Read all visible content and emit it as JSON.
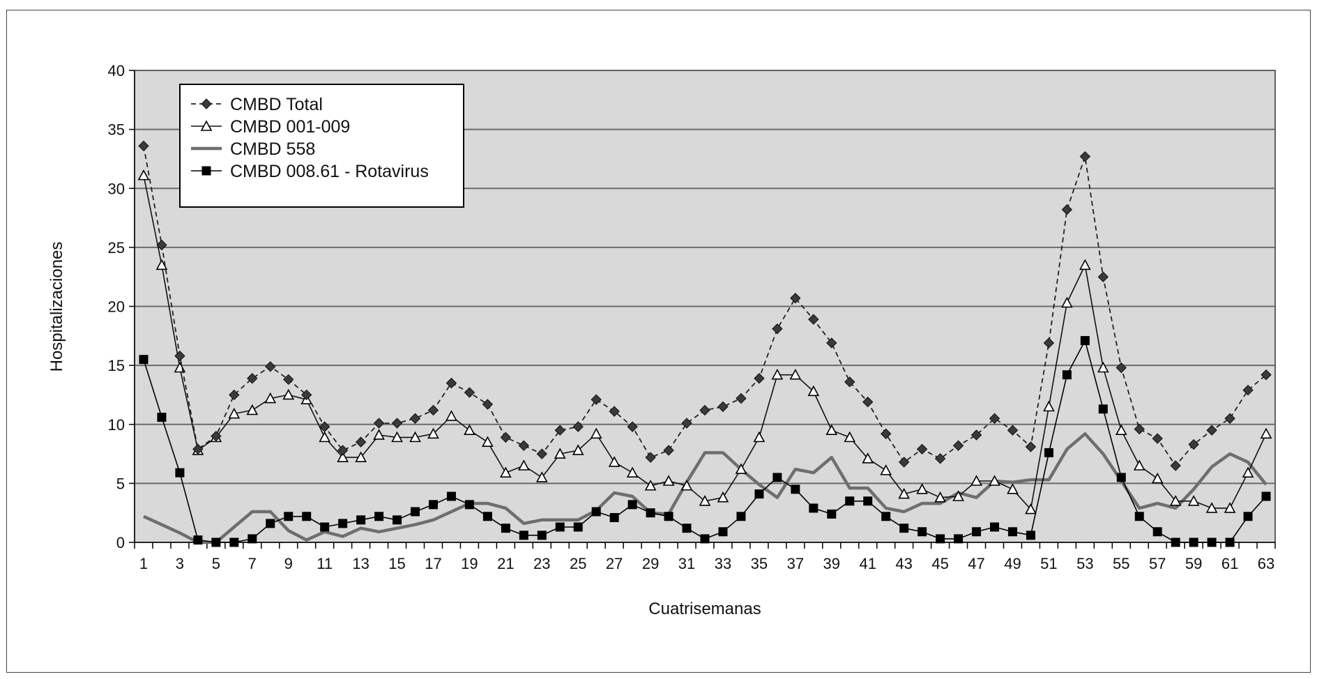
{
  "chart_data": {
    "type": "line",
    "xlabel": "Cuatrisemanas",
    "ylabel": "Hospitalizaciones",
    "ylim": [
      0,
      40
    ],
    "yticks": [
      0,
      5,
      10,
      15,
      20,
      25,
      30,
      35,
      40
    ],
    "xlim": [
      1,
      63
    ],
    "xticks": [
      1,
      3,
      5,
      7,
      9,
      11,
      13,
      15,
      17,
      19,
      21,
      23,
      25,
      27,
      29,
      31,
      33,
      35,
      37,
      39,
      41,
      43,
      45,
      47,
      49,
      51,
      53,
      55,
      57,
      59,
      61,
      63
    ],
    "grid": "horizontal",
    "legend_position": "top-left",
    "plot_background": "#d9d9d9",
    "series": [
      {
        "name": "CMBD Total",
        "style": "dashed",
        "marker": "diamond",
        "color": "#222222",
        "values": [
          33.6,
          25.2,
          15.8,
          7.9,
          9.0,
          12.5,
          13.9,
          14.9,
          13.8,
          12.5,
          9.8,
          7.8,
          8.5,
          10.1,
          10.1,
          10.5,
          11.2,
          13.5,
          12.7,
          11.7,
          8.9,
          8.2,
          7.5,
          9.5,
          9.8,
          12.1,
          11.1,
          9.8,
          7.2,
          7.8,
          10.1,
          11.2,
          11.5,
          12.2,
          13.9,
          18.1,
          20.7,
          18.9,
          16.9,
          13.6,
          11.9,
          9.2,
          6.8,
          7.9,
          7.1,
          8.2,
          9.1,
          10.5,
          9.5,
          8.1,
          16.9,
          28.2,
          32.7,
          22.5,
          14.8,
          9.6,
          8.8,
          6.5,
          8.3,
          9.5,
          10.5,
          12.9,
          14.2
        ]
      },
      {
        "name": "CMBD 001-009",
        "style": "solid",
        "marker": "triangle-open",
        "color": "#111111",
        "values": [
          31.1,
          23.5,
          14.8,
          7.8,
          8.9,
          10.9,
          11.2,
          12.2,
          12.5,
          12.1,
          8.9,
          7.2,
          7.2,
          9.1,
          8.9,
          8.9,
          9.2,
          10.7,
          9.5,
          8.5,
          5.9,
          6.5,
          5.5,
          7.5,
          7.8,
          9.2,
          6.8,
          5.9,
          4.8,
          5.2,
          4.8,
          3.5,
          3.8,
          6.2,
          8.9,
          14.2,
          14.2,
          12.8,
          9.5,
          8.9,
          7.1,
          6.1,
          4.1,
          4.5,
          3.8,
          3.9,
          5.2,
          5.2,
          4.5,
          2.8,
          11.5,
          20.3,
          23.5,
          14.8,
          9.5,
          6.5,
          5.4,
          3.5,
          3.5,
          2.9,
          2.9,
          5.9,
          9.2
        ]
      },
      {
        "name": "CMBD 558",
        "style": "solid-thick",
        "marker": "none",
        "color": "#6e6e6e",
        "values": [
          2.2,
          1.5,
          0.8,
          0.0,
          0.0,
          1.3,
          2.6,
          2.6,
          1.0,
          0.2,
          0.9,
          0.5,
          1.2,
          0.9,
          1.2,
          1.5,
          1.9,
          2.6,
          3.3,
          3.3,
          2.9,
          1.6,
          1.9,
          1.9,
          1.9,
          2.7,
          4.2,
          3.9,
          2.5,
          2.4,
          5.1,
          7.6,
          7.6,
          6.2,
          4.9,
          3.8,
          6.2,
          5.9,
          7.2,
          4.6,
          4.6,
          2.9,
          2.6,
          3.3,
          3.3,
          4.2,
          3.8,
          5.2,
          5.1,
          5.3,
          5.3,
          7.9,
          9.2,
          7.5,
          5.2,
          2.9,
          3.3,
          2.9,
          4.5,
          6.4,
          7.5,
          6.8,
          4.9
        ]
      },
      {
        "name": "CMBD 008.61 - Rotavirus",
        "style": "solid",
        "marker": "square",
        "color": "#000000",
        "values": [
          15.5,
          10.6,
          5.9,
          0.2,
          0.0,
          0.0,
          0.3,
          1.6,
          2.2,
          2.2,
          1.3,
          1.6,
          1.9,
          2.2,
          1.9,
          2.6,
          3.2,
          3.9,
          3.2,
          2.2,
          1.2,
          0.6,
          0.6,
          1.3,
          1.3,
          2.6,
          2.1,
          3.2,
          2.5,
          2.2,
          1.2,
          0.3,
          0.9,
          2.2,
          4.1,
          5.5,
          4.5,
          2.9,
          2.4,
          3.5,
          3.5,
          2.2,
          1.2,
          0.9,
          0.3,
          0.3,
          0.9,
          1.3,
          0.9,
          0.6,
          7.6,
          14.2,
          17.1,
          11.3,
          5.5,
          2.2,
          0.9,
          0.0,
          0.0,
          0.0,
          0.0,
          2.2,
          3.9
        ]
      }
    ]
  }
}
